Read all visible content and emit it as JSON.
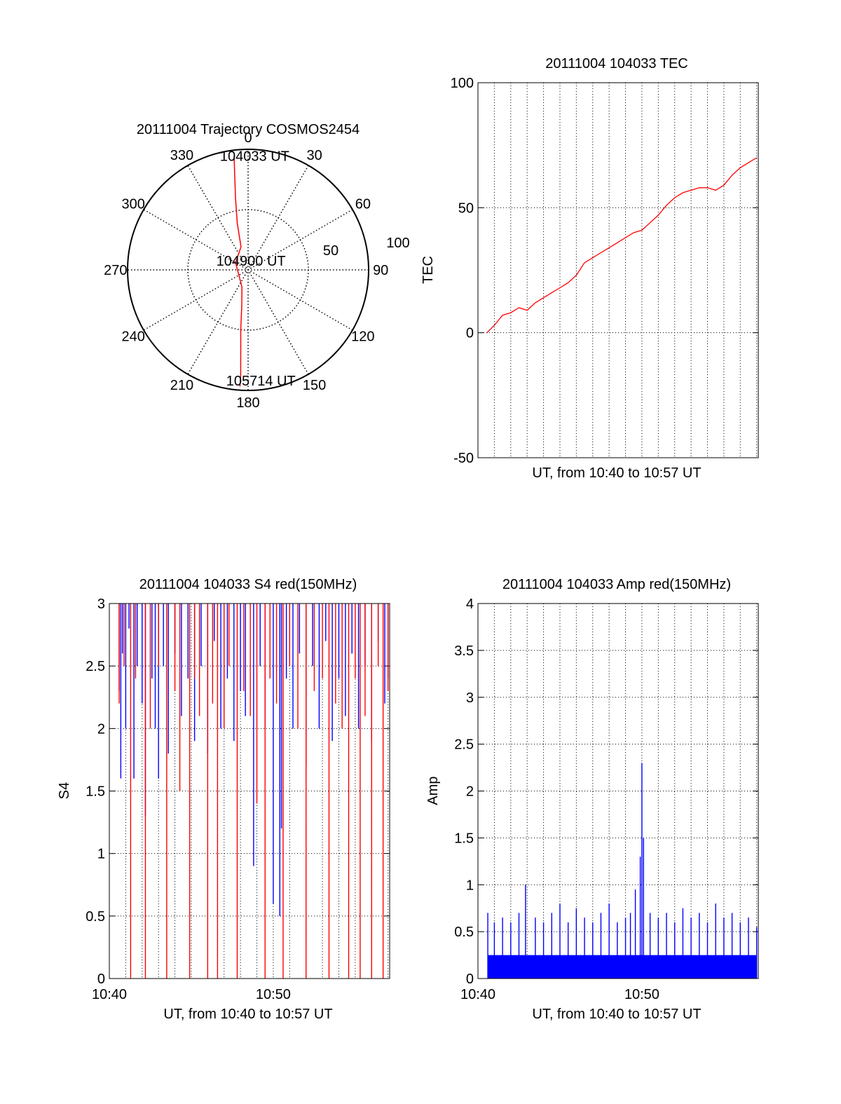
{
  "colors": {
    "red": "#ff0000",
    "blue": "#0000ff",
    "axis": "#000000",
    "grid": "#000000"
  },
  "chart_data": [
    {
      "id": "polar",
      "type": "polar-trajectory",
      "title": "20111004 Trajectory COSMOS2454",
      "azimuth_labels": [
        "0",
        "30",
        "60",
        "90",
        "120",
        "150",
        "180",
        "210",
        "240",
        "270",
        "300",
        "330"
      ],
      "radial_labels": [
        "50",
        "100"
      ],
      "rlim": [
        0,
        100
      ],
      "grid": true,
      "series": [
        {
          "color": "red",
          "points_az_el": [
            [
              353,
              5
            ],
            [
              352,
              20
            ],
            [
              350,
              40
            ],
            [
              347,
              60
            ],
            [
              343,
              80
            ],
            [
              300,
              88
            ],
            [
              200,
              85
            ],
            [
              190,
              70
            ],
            [
              187,
              50
            ],
            [
              185,
              30
            ],
            [
              184,
              12
            ],
            [
              184,
              3
            ]
          ]
        }
      ],
      "annotations": [
        {
          "label": "104033 UT",
          "az": 354,
          "r": 95
        },
        {
          "label": "104900 UT",
          "az": 300,
          "r": 15
        },
        {
          "label": "105714 UT",
          "az": 183,
          "r": 92
        }
      ]
    },
    {
      "id": "tec",
      "type": "line",
      "title": "20111004 104033 TEC",
      "xlabel": "UT, from 10:40 to 10:57 UT",
      "ylabel": "TEC",
      "ylim": [
        -50,
        100
      ],
      "yticks": [
        "-50",
        "0",
        "50",
        "100"
      ],
      "xlim_min": [
        0,
        17.1
      ],
      "grid": true,
      "series": [
        {
          "color": "red",
          "x_min": [
            0.55,
            1.0,
            1.5,
            2.0,
            2.5,
            3.0,
            3.5,
            4.0,
            4.5,
            5.0,
            5.5,
            6.0,
            6.5,
            7.0,
            7.5,
            8.0,
            8.5,
            9.0,
            9.5,
            10.0,
            10.5,
            11.0,
            11.5,
            12.0,
            12.5,
            13.0,
            13.5,
            14.0,
            14.5,
            15.0,
            15.5,
            16.0,
            16.5,
            17.0
          ],
          "values": [
            0,
            3,
            7,
            8,
            10,
            9,
            12,
            14,
            16,
            18,
            20,
            23,
            28,
            30,
            32,
            34,
            36,
            38,
            40,
            41,
            44,
            47,
            51,
            54,
            56,
            57,
            58,
            58,
            57,
            59,
            63,
            66,
            68,
            70
          ]
        }
      ]
    },
    {
      "id": "s4",
      "type": "line",
      "title": "20111004 104033 S4 red(150MHz)",
      "xlabel": "UT, from 10:40 to 10:57 UT",
      "ylabel": "S4",
      "ylim": [
        0,
        3
      ],
      "yticks": [
        "0",
        "0.5",
        "1",
        "1.5",
        "2",
        "2.5",
        "3"
      ],
      "xticks": [
        "10:40",
        "10:50"
      ],
      "xlim_min": [
        0,
        17.1
      ],
      "grid": true,
      "series": [
        {
          "color": "blue",
          "x_min": [
            0.6,
            0.7,
            0.8,
            1.0,
            1.2,
            1.5,
            1.7,
            2.0,
            2.2,
            2.6,
            2.8,
            3.0,
            3.3,
            3.6,
            4.0,
            4.4,
            4.8,
            5.2,
            5.6,
            6.0,
            6.4,
            6.8,
            7.2,
            7.6,
            8.0,
            8.3,
            8.8,
            9.2,
            9.5,
            10.0,
            10.4,
            10.5,
            10.8,
            11.2,
            11.6,
            12.0,
            12.4,
            12.8,
            13.2,
            13.6,
            14.0,
            14.4,
            14.8,
            15.2,
            15.6,
            16.0,
            16.4,
            16.8,
            17.0
          ],
          "values": [
            2.3,
            1.6,
            2.6,
            2.0,
            2.8,
            1.6,
            2.5,
            2.2,
            1.3,
            2.4,
            2.0,
            1.6,
            2.5,
            1.8,
            2.6,
            2.1,
            2.4,
            1.9,
            2.5,
            1.8,
            2.7,
            2.0,
            2.4,
            1.9,
            2.3,
            2.1,
            0.9,
            2.5,
            2.0,
            0.6,
            0.5,
            1.2,
            2.4,
            2.0,
            2.6,
            1.7,
            2.5,
            2.0,
            2.7,
            1.9,
            2.4,
            2.1,
            2.6,
            2.0,
            2.5,
            1.9,
            2.7,
            2.2,
            2.4
          ]
        },
        {
          "color": "red",
          "x_min": [
            0.6,
            0.9,
            1.3,
            1.6,
            2.2,
            2.5,
            3.0,
            3.5,
            4.0,
            4.3,
            4.9,
            5.2,
            5.5,
            6.0,
            6.3,
            6.6,
            7.0,
            7.3,
            7.8,
            8.2,
            8.6,
            9.0,
            9.5,
            9.8,
            10.2,
            10.6,
            11.0,
            11.5,
            12.0,
            12.5,
            13.0,
            13.4,
            13.8,
            14.2,
            14.6,
            15.0,
            15.3,
            15.6,
            16.0,
            16.4,
            16.7,
            17.0
          ],
          "values": [
            2.2,
            2.5,
            0,
            2.4,
            0,
            2.0,
            2.5,
            0,
            2.3,
            1.5,
            0,
            2.4,
            2.1,
            0,
            2.2,
            0,
            2.0,
            2.5,
            0,
            2.3,
            2.1,
            1.4,
            0,
            2.4,
            2.2,
            0,
            2.5,
            2.0,
            0,
            2.3,
            2.4,
            0,
            2.2,
            2.0,
            0,
            2.4,
            0,
            2.1,
            0,
            2.5,
            0,
            2.3
          ]
        }
      ]
    },
    {
      "id": "amp",
      "type": "bar",
      "title": "20111004 104033 Amp red(150MHz)",
      "xlabel": "UT, from 10:40 to 10:57 UT",
      "ylabel": "Amp",
      "ylim": [
        0,
        4
      ],
      "yticks": [
        "0",
        "0.5",
        "1",
        "1.5",
        "2",
        "2.5",
        "3",
        "3.5",
        "4"
      ],
      "xticks": [
        "10:40",
        "10:50"
      ],
      "xlim_min": [
        0,
        17.1
      ],
      "grid": true,
      "series": [
        {
          "color": "blue",
          "baseline": 0.25,
          "x_min": [
            0.6,
            1.0,
            1.5,
            2.0,
            2.5,
            2.9,
            3.5,
            4.0,
            4.5,
            5.0,
            5.5,
            6.0,
            6.5,
            7.0,
            7.5,
            8.0,
            8.5,
            9.0,
            9.3,
            9.6,
            9.9,
            10.0,
            10.1,
            10.5,
            11.0,
            11.5,
            12.0,
            12.5,
            13.0,
            13.5,
            14.0,
            14.5,
            15.0,
            15.5,
            16.0,
            16.5,
            17.0
          ],
          "values": [
            0.7,
            0.6,
            0.65,
            0.6,
            0.7,
            1.0,
            0.65,
            0.6,
            0.7,
            0.8,
            0.6,
            0.75,
            0.65,
            0.6,
            0.7,
            0.8,
            0.6,
            0.65,
            0.7,
            0.95,
            1.3,
            2.3,
            1.5,
            0.7,
            0.65,
            0.7,
            0.6,
            0.75,
            0.65,
            0.7,
            0.6,
            0.8,
            0.65,
            0.7,
            0.6,
            0.65,
            0.55
          ]
        }
      ]
    }
  ]
}
